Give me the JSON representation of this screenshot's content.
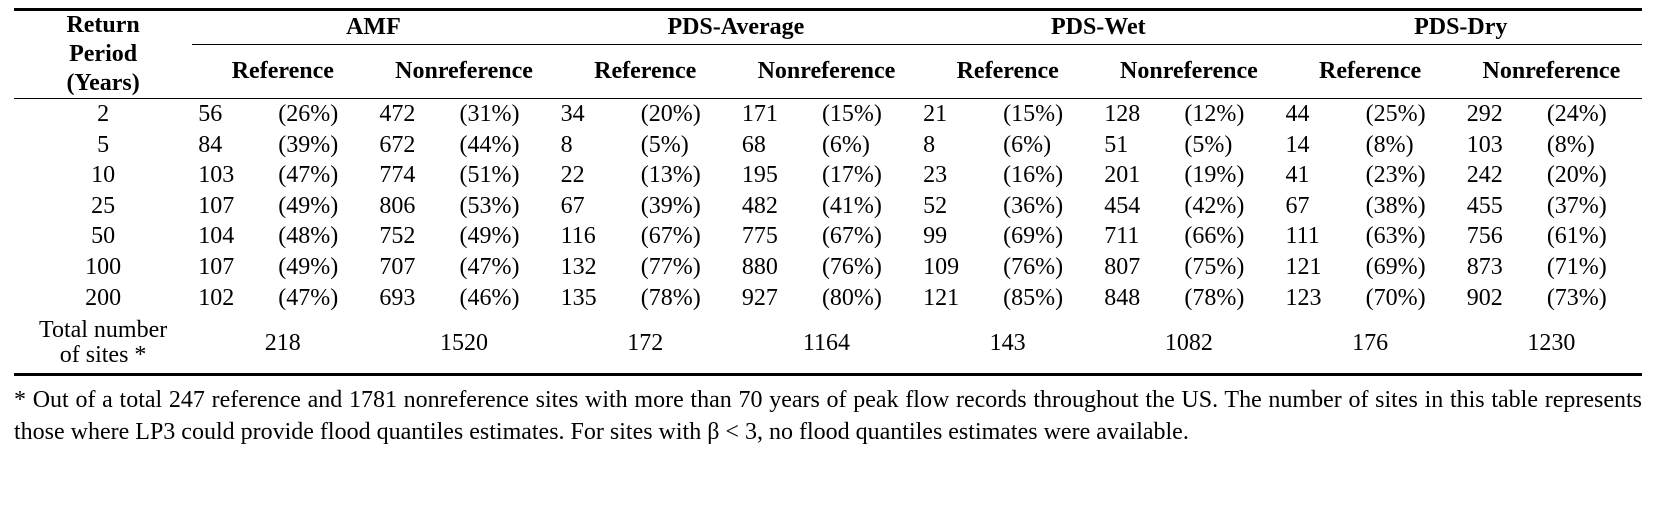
{
  "header": {
    "rp_line1": "Return",
    "rp_line2": "Period",
    "rp_line3": "(Years)",
    "groups": [
      "AMF",
      "PDS-Average",
      "PDS-Wet",
      "PDS-Dry"
    ],
    "sub_reference": "Reference",
    "sub_nonreference": "Nonreference"
  },
  "rows": [
    {
      "rp": "2",
      "cells": [
        [
          "56",
          "(26%)"
        ],
        [
          "472",
          "(31%)"
        ],
        [
          "34",
          "(20%)"
        ],
        [
          "171",
          "(15%)"
        ],
        [
          "21",
          "(15%)"
        ],
        [
          "128",
          "(12%)"
        ],
        [
          "44",
          "(25%)"
        ],
        [
          "292",
          "(24%)"
        ]
      ]
    },
    {
      "rp": "5",
      "cells": [
        [
          "84",
          "(39%)"
        ],
        [
          "672",
          "(44%)"
        ],
        [
          "8",
          "(5%)"
        ],
        [
          "68",
          "(6%)"
        ],
        [
          "8",
          "(6%)"
        ],
        [
          "51",
          "(5%)"
        ],
        [
          "14",
          "(8%)"
        ],
        [
          "103",
          "(8%)"
        ]
      ]
    },
    {
      "rp": "10",
      "cells": [
        [
          "103",
          "(47%)"
        ],
        [
          "774",
          "(51%)"
        ],
        [
          "22",
          "(13%)"
        ],
        [
          "195",
          "(17%)"
        ],
        [
          "23",
          "(16%)"
        ],
        [
          "201",
          "(19%)"
        ],
        [
          "41",
          "(23%)"
        ],
        [
          "242",
          "(20%)"
        ]
      ]
    },
    {
      "rp": "25",
      "cells": [
        [
          "107",
          "(49%)"
        ],
        [
          "806",
          "(53%)"
        ],
        [
          "67",
          "(39%)"
        ],
        [
          "482",
          "(41%)"
        ],
        [
          "52",
          "(36%)"
        ],
        [
          "454",
          "(42%)"
        ],
        [
          "67",
          "(38%)"
        ],
        [
          "455",
          "(37%)"
        ]
      ]
    },
    {
      "rp": "50",
      "cells": [
        [
          "104",
          "(48%)"
        ],
        [
          "752",
          "(49%)"
        ],
        [
          "116",
          "(67%)"
        ],
        [
          "775",
          "(67%)"
        ],
        [
          "99",
          "(69%)"
        ],
        [
          "711",
          "(66%)"
        ],
        [
          "111",
          "(63%)"
        ],
        [
          "756",
          "(61%)"
        ]
      ]
    },
    {
      "rp": "100",
      "cells": [
        [
          "107",
          "(49%)"
        ],
        [
          "707",
          "(47%)"
        ],
        [
          "132",
          "(77%)"
        ],
        [
          "880",
          "(76%)"
        ],
        [
          "109",
          "(76%)"
        ],
        [
          "807",
          "(75%)"
        ],
        [
          "121",
          "(69%)"
        ],
        [
          "873",
          "(71%)"
        ]
      ]
    },
    {
      "rp": "200",
      "cells": [
        [
          "102",
          "(47%)"
        ],
        [
          "693",
          "(46%)"
        ],
        [
          "135",
          "(78%)"
        ],
        [
          "927",
          "(80%)"
        ],
        [
          "121",
          "(85%)"
        ],
        [
          "848",
          "(78%)"
        ],
        [
          "123",
          "(70%)"
        ],
        [
          "902",
          "(73%)"
        ]
      ]
    }
  ],
  "total": {
    "label_line1": "Total number",
    "label_line2": "of sites *",
    "values": [
      "218",
      "1520",
      "172",
      "1164",
      "143",
      "1082",
      "176",
      "1230"
    ]
  },
  "footnote": "* Out of a total 247 reference and 1781 nonreference sites with more than 70 years of peak flow records throughout the US. The number of sites in this table represents those where LP3 could provide flood quantiles estimates. For sites with β < 3, no flood quantiles estimates were available."
}
